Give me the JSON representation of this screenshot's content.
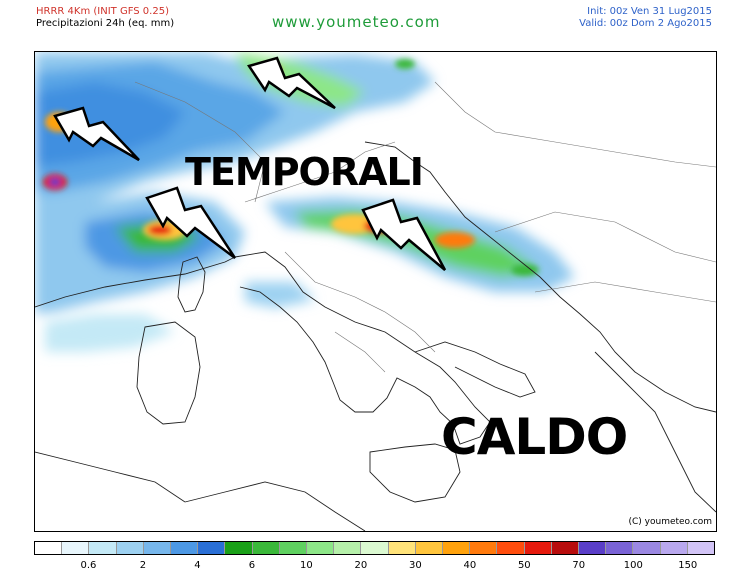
{
  "header": {
    "model": "HRRR 4Km (INIT GFS 0.25)",
    "product": "Precipitazioni 24h (eq. mm)",
    "site": "www.youmeteo.com",
    "init": "Init: 00z Ven 31 Lug2015",
    "valid": "Valid: 00z Dom 2 Ago2015"
  },
  "map": {
    "overlay_words": [
      "TEMPORALI",
      "CALDO"
    ],
    "lightning_icons": 4,
    "credit": "(C) youmeteo.com"
  },
  "legend": {
    "colors": [
      "#ffffff",
      "#e8f6fc",
      "#c4e9f6",
      "#9dd1f1",
      "#77b7ec",
      "#4d98e4",
      "#2a6fd6",
      "#1aa018",
      "#3bb83a",
      "#5fd160",
      "#8de688",
      "#b6f0aa",
      "#dbf9d1",
      "#ffe37a",
      "#ffc53d",
      "#ffa20d",
      "#ff7a0d",
      "#ff4d0d",
      "#e61a0d",
      "#b80d0d",
      "#5a3ec8",
      "#7a63d6",
      "#9b88e2",
      "#b9a8ee",
      "#d2c4f6"
    ],
    "labels": [
      "0.6",
      "2",
      "4",
      "6",
      "10",
      "20",
      "30",
      "40",
      "50",
      "70",
      "100",
      "150"
    ]
  }
}
